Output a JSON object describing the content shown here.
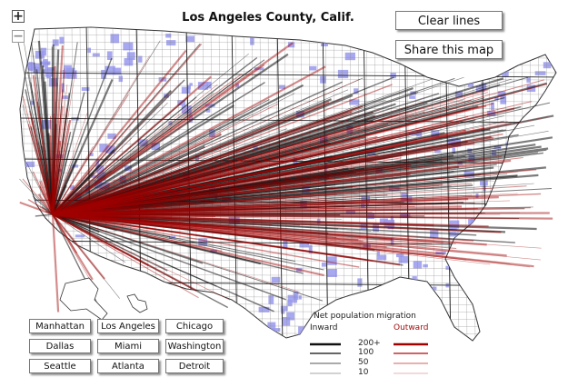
{
  "map": {
    "title": "Los Angeles County, Calif."
  },
  "zoom": {
    "in_label": "+",
    "out_label": "−"
  },
  "actions": {
    "clear_label": "Clear lines",
    "share_label": "Share this map"
  },
  "cities": [
    "Manhattan",
    "Los Angeles",
    "Chicago",
    "Dallas",
    "Miami",
    "Washington",
    "Seattle",
    "Atlanta",
    "Detroit"
  ],
  "legend": {
    "title": "Net population migration",
    "inward_label": "Inward",
    "outward_label": "Outward",
    "levels": [
      "200+",
      "100",
      "50",
      "10"
    ]
  },
  "colors": {
    "inward": "#111111",
    "outward": "#a00000",
    "counties": "#9999ee",
    "land": "#ffffff"
  }
}
